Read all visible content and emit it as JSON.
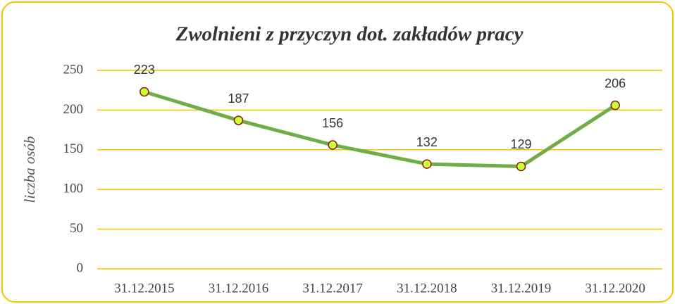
{
  "chart_data": {
    "type": "line",
    "title": "Zwolnieni z przyczyn dot. zakładów pracy",
    "y_label": "liczba osób",
    "categories": [
      "31.12.2015",
      "31.12.2016",
      "31.12.2017",
      "31.12.2018",
      "31.12.2019",
      "31.12.2020"
    ],
    "values": [
      223,
      187,
      156,
      132,
      129,
      206
    ],
    "color": "#70ad47",
    "marker_color": "#ccff33",
    "ylim": [
      0,
      250
    ],
    "yticks": [
      0,
      50,
      100,
      150,
      200,
      250
    ],
    "grid": true
  }
}
